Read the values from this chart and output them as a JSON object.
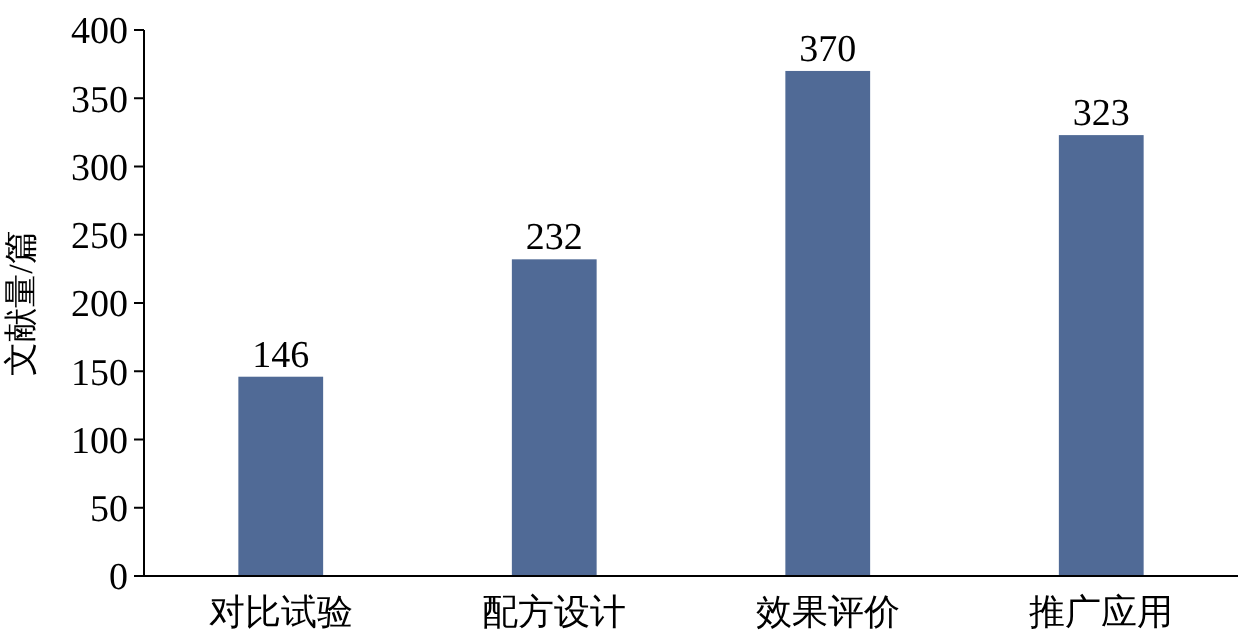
{
  "chart_data": {
    "type": "bar",
    "ylabel": "文献量/篇",
    "categories": [
      "对比试验",
      "配方设计",
      "效果评价",
      "推广应用"
    ],
    "values": [
      146,
      232,
      370,
      323
    ],
    "color": "#506a96",
    "ylim": [
      0,
      400
    ],
    "yticks": [
      0,
      50,
      100,
      150,
      200,
      250,
      300,
      350,
      400
    ],
    "data_labels": true,
    "grid": false
  }
}
